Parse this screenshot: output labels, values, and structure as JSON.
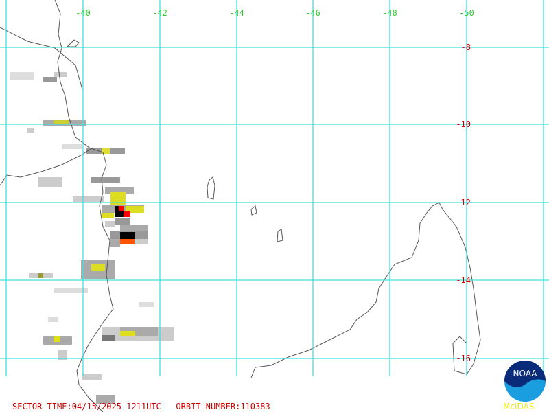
{
  "map": {
    "lon_labels": [
      -40,
      -42,
      -44,
      -46,
      -48,
      -50
    ],
    "lat_labels": [
      -8,
      -10,
      -12,
      -14,
      -16
    ],
    "footer": "SECTOR_TIME:04/15/2025_1211UTC___ORBIT_NUMBER:110383",
    "logo_text": "NOAA",
    "credit": "McIDAS"
  }
}
